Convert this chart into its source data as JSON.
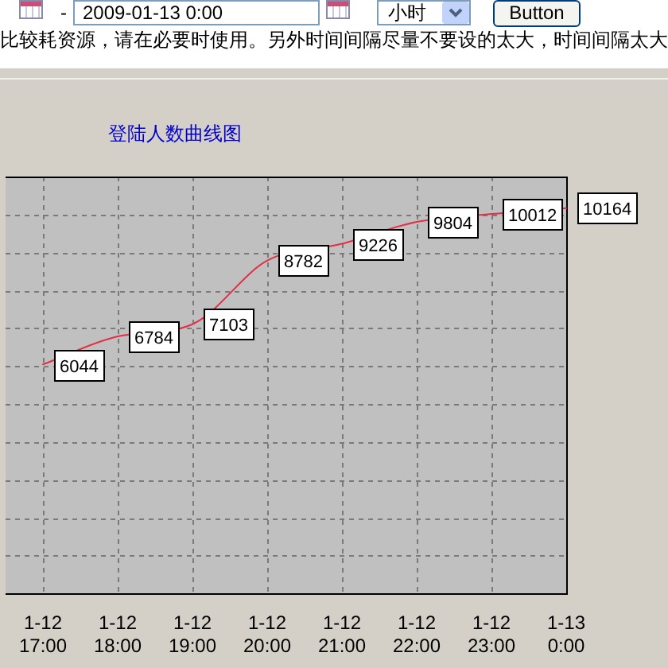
{
  "chart_data": {
    "type": "line",
    "title": "登陆人数曲线图",
    "categories": [
      "1-12\n17:00",
      "1-12\n18:00",
      "1-12\n19:00",
      "1-12\n20:00",
      "1-12\n21:00",
      "1-12\n22:00",
      "1-12\n23:00",
      "1-13\n0:00"
    ],
    "values": [
      6044,
      6784,
      7103,
      8782,
      9226,
      9804,
      10012,
      10164
    ],
    "color": "#e03048",
    "ylim": [
      0,
      11000
    ],
    "yticks": [
      {
        "value": 0,
        "label": null
      },
      {
        "value": 1000,
        "label": null
      },
      {
        "value": 2000,
        "label": null
      },
      {
        "value": 3000,
        "label": null
      },
      {
        "value": 4000,
        "label": null
      },
      {
        "value": 5000,
        "label": null
      },
      {
        "value": 6000,
        "label": null
      },
      {
        "value": 7000,
        "label": null
      },
      {
        "value": 8000,
        "label": null
      },
      {
        "value": 9000,
        "label": null
      },
      {
        "value": 10000,
        "label": null
      },
      {
        "value": 11000,
        "label": null
      }
    ],
    "tick_labels": "x",
    "grid": true,
    "marker": "none",
    "line_style": "solid",
    "data_labels": true,
    "annotations": [
      "比较耗资源，请在必要时使用。另外时间间隔尽量不要设的太大，时间间隔太大",
      "-",
      "2009-01-13 0:00",
      "小时",
      "Button"
    ]
  }
}
